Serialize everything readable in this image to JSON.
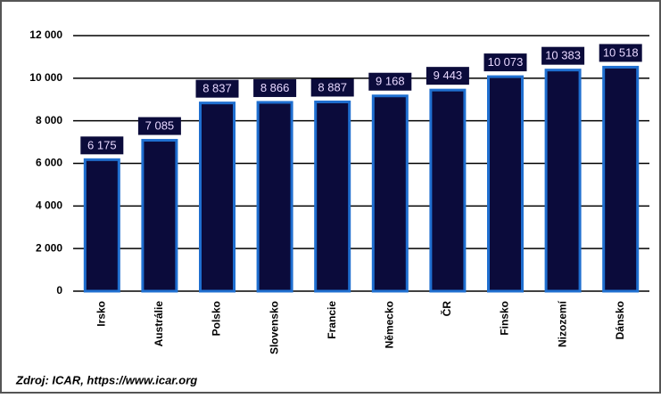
{
  "chart_data": {
    "type": "bar",
    "categories": [
      "Irsko",
      "Austrálie",
      "Polsko",
      "Slovensko",
      "Francie",
      "Německo",
      "ČR",
      "Finsko",
      "Nizozemí",
      "Dánsko"
    ],
    "values": [
      6175,
      7085,
      8837,
      8866,
      8887,
      9168,
      9443,
      10073,
      10383,
      10518
    ],
    "value_labels": [
      "6 175",
      "7 085",
      "8 837",
      "8 866",
      "8 887",
      "9 168",
      "9 443",
      "10 073",
      "10 383",
      "10 518"
    ],
    "color": "#0b0b3b",
    "edge_color": "#1f6fd0",
    "ylim": [
      0,
      12000
    ],
    "yticks": [
      {
        "value": 0,
        "label": "0"
      },
      {
        "value": 2000,
        "label": "2 000"
      },
      {
        "value": 4000,
        "label": "4 000"
      },
      {
        "value": 6000,
        "label": "6 000"
      },
      {
        "value": 8000,
        "label": "8 000"
      },
      {
        "value": 10000,
        "label": "10 000"
      },
      {
        "value": 12000,
        "label": "12 000"
      }
    ],
    "grid": true,
    "source": "Zdroj: ICAR, https://www.icar.org"
  }
}
